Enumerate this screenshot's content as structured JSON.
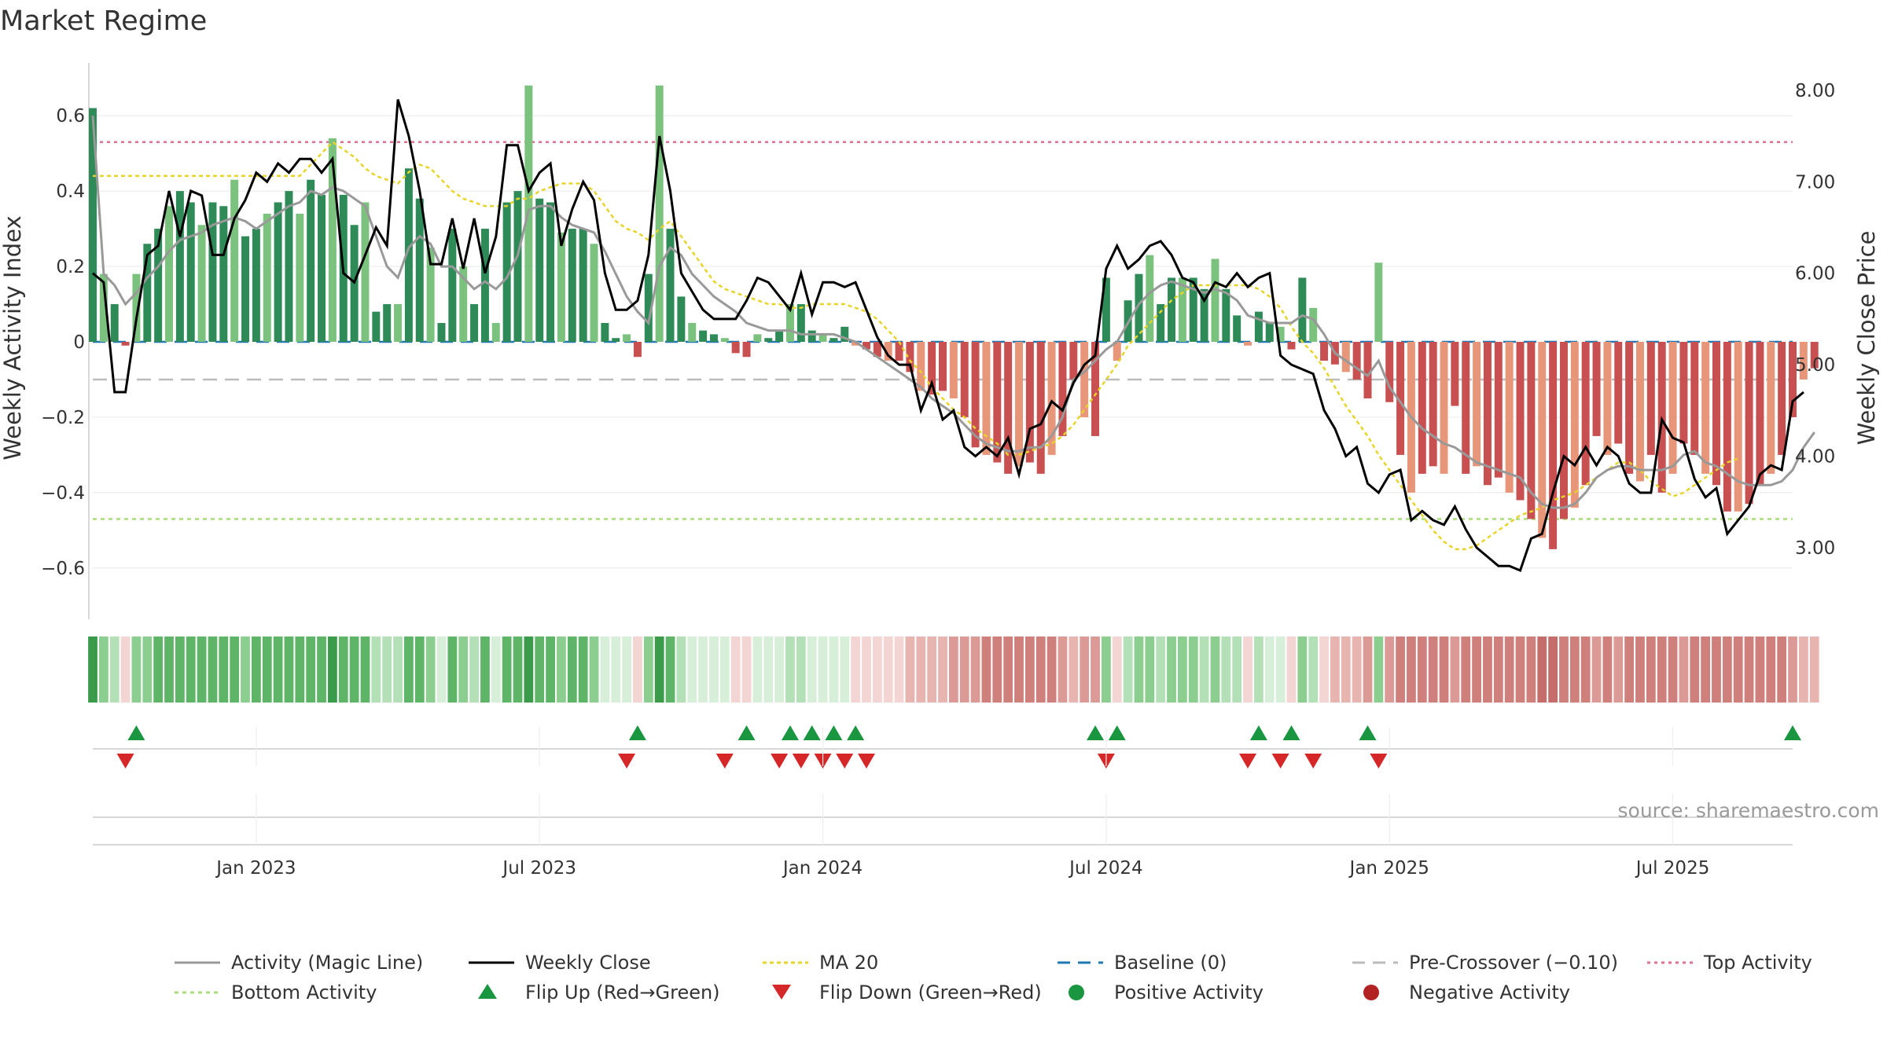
{
  "chart_data": {
    "type": "bar",
    "title": "Market Regime",
    "source_note": "source: sharemaestro.com",
    "colors": {
      "strong_green": "#2e8b57",
      "light_green": "#7cc27f",
      "strong_red": "#c85050",
      "light_red": "#e8967a",
      "magic_line": "#999999",
      "weekly_close": "#000000",
      "ma20": "#e6d42a",
      "baseline": "#1f77b4",
      "pre_crossover": "#bbbbbb",
      "top_activity": "#e07090",
      "bottom_activity": "#a8dd7a",
      "flip_up": "#1a9641",
      "flip_down": "#d62728"
    },
    "y_left": {
      "label": "Weekly Activity Index",
      "range": [
        -0.74,
        0.74
      ],
      "ticks": [
        0.6,
        0.4,
        0.2,
        0,
        -0.2,
        -0.4,
        -0.6
      ],
      "tick_labels": [
        "0.6",
        "0.4",
        "0.2",
        "0",
        "−0.2",
        "−0.4",
        "−0.6"
      ]
    },
    "y_right": {
      "label": "Weekly Close Price",
      "range": [
        2.2,
        8.3
      ],
      "ticks": [
        8,
        7,
        6,
        5,
        4,
        3
      ],
      "tick_labels": [
        "8.00",
        "7.00",
        "6.00",
        "5.00",
        "4.00",
        "3.00"
      ]
    },
    "x_axis": {
      "start": "2022-09-23",
      "weeks": 157,
      "tick_weeks": [
        15,
        41,
        67,
        93,
        119,
        145
      ],
      "tick_labels": [
        "Jan 2023",
        "Jul 2023",
        "Jan 2024",
        "Jul 2024",
        "Jan 2025",
        "Jul 2025"
      ]
    },
    "reference_lines": {
      "top_activity": 0.53,
      "pre_crossover": -0.1,
      "baseline": 0,
      "bottom_activity": -0.47
    },
    "activity": [
      0.62,
      0.18,
      0.1,
      -0.01,
      0.18,
      0.26,
      0.3,
      0.36,
      0.4,
      0.37,
      0.31,
      0.37,
      0.36,
      0.43,
      0.28,
      0.3,
      0.34,
      0.37,
      0.4,
      0.34,
      0.43,
      0.39,
      0.54,
      0.39,
      0.31,
      0.37,
      0.08,
      0.1,
      0.1,
      0.46,
      0.38,
      0.25,
      0.05,
      0.3,
      0.2,
      0.1,
      0.3,
      0.05,
      0.37,
      0.4,
      0.68,
      0.38,
      0.37,
      0.29,
      0.3,
      0.3,
      0.26,
      0.05,
      0.01,
      0.02,
      -0.04,
      0.18,
      0.68,
      0.3,
      0.12,
      0.05,
      0.03,
      0.02,
      0.01,
      -0.03,
      -0.04,
      0.02,
      0.01,
      0.03,
      0.1,
      0.1,
      0.03,
      0.02,
      0.01,
      0.04,
      -0.01,
      -0.02,
      -0.04,
      -0.05,
      -0.05,
      -0.08,
      -0.13,
      -0.14,
      -0.13,
      -0.15,
      -0.2,
      -0.28,
      -0.3,
      -0.32,
      -0.35,
      -0.33,
      -0.32,
      -0.35,
      -0.3,
      -0.25,
      -0.1,
      -0.2,
      -0.25,
      0.17,
      -0.05,
      0.11,
      0.18,
      0.23,
      0.1,
      0.17,
      0.17,
      0.17,
      0.14,
      0.22,
      0.14,
      0.07,
      -0.01,
      0.08,
      0.05,
      0.04,
      -0.02,
      0.17,
      0.09,
      -0.05,
      -0.06,
      -0.08,
      -0.1,
      -0.15,
      0.21,
      -0.16,
      -0.3,
      -0.4,
      -0.35,
      -0.33,
      -0.35,
      -0.17,
      -0.35,
      -0.33,
      -0.38,
      -0.36,
      -0.4,
      -0.42,
      -0.47,
      -0.52,
      -0.55,
      -0.47,
      -0.44,
      -0.38,
      -0.25,
      -0.3,
      -0.27,
      -0.35,
      -0.37,
      -0.3,
      -0.4,
      -0.35,
      -0.27,
      -0.3,
      -0.35,
      -0.38,
      -0.45,
      -0.45,
      -0.43,
      -0.38,
      -0.35,
      -0.3,
      -0.2,
      -0.1,
      -0.07
    ],
    "magic_line": [
      0.6,
      0.18,
      0.15,
      0.1,
      0.13,
      0.17,
      0.2,
      0.24,
      0.27,
      0.28,
      0.29,
      0.31,
      0.32,
      0.33,
      0.32,
      0.3,
      0.32,
      0.34,
      0.36,
      0.37,
      0.4,
      0.39,
      0.41,
      0.4,
      0.38,
      0.36,
      0.28,
      0.2,
      0.17,
      0.25,
      0.28,
      0.26,
      0.2,
      0.2,
      0.17,
      0.14,
      0.16,
      0.14,
      0.17,
      0.23,
      0.35,
      0.36,
      0.36,
      0.33,
      0.31,
      0.3,
      0.29,
      0.24,
      0.18,
      0.12,
      0.08,
      0.05,
      0.2,
      0.25,
      0.23,
      0.18,
      0.15,
      0.12,
      0.1,
      0.08,
      0.05,
      0.04,
      0.03,
      0.03,
      0.03,
      0.02,
      0.02,
      0.02,
      0.02,
      0.01,
      0.0,
      -0.02,
      -0.04,
      -0.06,
      -0.08,
      -0.1,
      -0.12,
      -0.15,
      -0.17,
      -0.19,
      -0.22,
      -0.25,
      -0.27,
      -0.28,
      -0.29,
      -0.29,
      -0.28,
      -0.28,
      -0.25,
      -0.2,
      -0.1,
      -0.08,
      -0.05,
      -0.02,
      0.0,
      0.05,
      0.1,
      0.13,
      0.15,
      0.16,
      0.15,
      0.14,
      0.13,
      0.14,
      0.13,
      0.11,
      0.07,
      0.06,
      0.05,
      0.05,
      0.05,
      0.07,
      0.06,
      0.02,
      -0.03,
      -0.05,
      -0.07,
      -0.09,
      -0.05,
      -0.12,
      -0.16,
      -0.2,
      -0.23,
      -0.25,
      -0.27,
      -0.28,
      -0.3,
      -0.32,
      -0.33,
      -0.34,
      -0.35,
      -0.36,
      -0.4,
      -0.43,
      -0.44,
      -0.44,
      -0.43,
      -0.4,
      -0.36,
      -0.34,
      -0.33,
      -0.33,
      -0.34,
      -0.34,
      -0.34,
      -0.33,
      -0.3,
      -0.29,
      -0.32,
      -0.33,
      -0.35,
      -0.37,
      -0.38,
      -0.38,
      -0.38,
      -0.37,
      -0.34,
      -0.28,
      -0.24
    ],
    "ma20": [
      0.44,
      0.44,
      0.44,
      0.44,
      0.44,
      0.44,
      0.44,
      0.44,
      0.44,
      0.44,
      0.44,
      0.44,
      0.44,
      0.44,
      0.44,
      0.44,
      0.44,
      0.44,
      0.44,
      0.44,
      0.47,
      0.5,
      0.53,
      0.51,
      0.49,
      0.46,
      0.44,
      0.43,
      0.42,
      0.45,
      0.47,
      0.46,
      0.43,
      0.4,
      0.38,
      0.37,
      0.36,
      0.36,
      0.36,
      0.38,
      0.38,
      0.4,
      0.41,
      0.42,
      0.42,
      0.42,
      0.4,
      0.36,
      0.32,
      0.3,
      0.29,
      0.27,
      0.3,
      0.32,
      0.28,
      0.24,
      0.2,
      0.16,
      0.14,
      0.13,
      0.12,
      0.11,
      0.1,
      0.1,
      0.09,
      0.09,
      0.1,
      0.1,
      0.1,
      0.1,
      0.09,
      0.08,
      0.06,
      0.03,
      0.0,
      -0.05,
      -0.08,
      -0.12,
      -0.15,
      -0.18,
      -0.2,
      -0.23,
      -0.25,
      -0.27,
      -0.3,
      -0.3,
      -0.29,
      -0.28,
      -0.27,
      -0.25,
      -0.22,
      -0.18,
      -0.14,
      -0.1,
      -0.06,
      -0.01,
      0.02,
      0.05,
      0.08,
      0.11,
      0.13,
      0.15,
      0.15,
      0.15,
      0.15,
      0.15,
      0.15,
      0.14,
      0.12,
      0.09,
      0.04,
      0.0,
      -0.03,
      -0.07,
      -0.12,
      -0.17,
      -0.21,
      -0.25,
      -0.3,
      -0.34,
      -0.38,
      -0.42,
      -0.46,
      -0.5,
      -0.53,
      -0.55,
      -0.55,
      -0.54,
      -0.52,
      -0.5,
      -0.48,
      -0.46,
      -0.45,
      -0.44,
      -0.42,
      -0.41,
      -0.4,
      -0.38,
      -0.36,
      -0.34,
      -0.32,
      -0.32,
      -0.34,
      -0.37,
      -0.39,
      -0.41,
      -0.4,
      -0.38,
      -0.36,
      -0.34,
      -0.32,
      -0.31
    ],
    "weekly_close": [
      6.0,
      5.9,
      4.7,
      4.7,
      5.5,
      6.2,
      6.3,
      6.9,
      6.4,
      6.9,
      6.85,
      6.2,
      6.2,
      6.6,
      6.8,
      7.1,
      7.0,
      7.2,
      7.1,
      7.25,
      7.25,
      7.1,
      7.25,
      6.0,
      5.9,
      6.2,
      6.5,
      6.3,
      7.9,
      7.5,
      6.9,
      6.1,
      6.1,
      6.6,
      6.05,
      6.6,
      6.0,
      6.4,
      7.4,
      7.4,
      6.9,
      7.1,
      7.2,
      6.3,
      6.7,
      7.0,
      6.8,
      6.0,
      5.6,
      5.6,
      5.7,
      6.2,
      7.5,
      6.9,
      6.0,
      5.8,
      5.6,
      5.5,
      5.5,
      5.5,
      5.7,
      5.95,
      5.9,
      5.75,
      5.6,
      6.0,
      5.55,
      5.9,
      5.9,
      5.85,
      5.9,
      5.6,
      5.3,
      5.1,
      5.0,
      5.0,
      4.5,
      4.8,
      4.4,
      4.5,
      4.1,
      4.0,
      4.1,
      4.0,
      4.2,
      3.8,
      4.3,
      4.35,
      4.6,
      4.5,
      4.8,
      5.0,
      5.1,
      6.05,
      6.3,
      6.05,
      6.15,
      6.3,
      6.35,
      6.2,
      5.95,
      5.9,
      5.7,
      5.9,
      5.85,
      6.0,
      5.85,
      5.95,
      6.0,
      5.1,
      5.0,
      4.95,
      4.9,
      4.5,
      4.3,
      4.0,
      4.1,
      3.7,
      3.6,
      3.8,
      3.85,
      3.3,
      3.4,
      3.3,
      3.25,
      3.45,
      3.2,
      3.0,
      2.9,
      2.8,
      2.8,
      2.75,
      3.1,
      3.15,
      3.6,
      4.0,
      3.9,
      4.1,
      3.9,
      4.1,
      4.0,
      3.7,
      3.6,
      3.6,
      4.4,
      4.2,
      4.15,
      3.75,
      3.55,
      3.65,
      3.15,
      3.3,
      3.45,
      3.8,
      3.9,
      3.85,
      4.6,
      4.7
    ],
    "flip_up_weeks": [
      4,
      50,
      60,
      64,
      66,
      68,
      70,
      92,
      94,
      107,
      110,
      117,
      156
    ],
    "flip_down_weeks": [
      3,
      49,
      58,
      63,
      65,
      67,
      69,
      71,
      93,
      106,
      109,
      112,
      118
    ],
    "legend": [
      {
        "key": "magic_line",
        "label": "Activity (Magic Line)"
      },
      {
        "key": "weekly_close",
        "label": "Weekly Close"
      },
      {
        "key": "ma20",
        "label": "MA 20"
      },
      {
        "key": "baseline",
        "label": "Baseline (0)"
      },
      {
        "key": "pre_crossover",
        "label": "Pre-Crossover (−0.10)"
      },
      {
        "key": "top_activity",
        "label": "Top Activity"
      },
      {
        "key": "bottom_activity",
        "label": "Bottom Activity"
      },
      {
        "key": "flip_up",
        "label": "Flip Up (Red→Green)"
      },
      {
        "key": "flip_down",
        "label": "Flip Down (Green→Red)"
      },
      {
        "key": "positive",
        "label": "Positive Activity"
      },
      {
        "key": "negative",
        "label": "Negative Activity"
      }
    ]
  }
}
